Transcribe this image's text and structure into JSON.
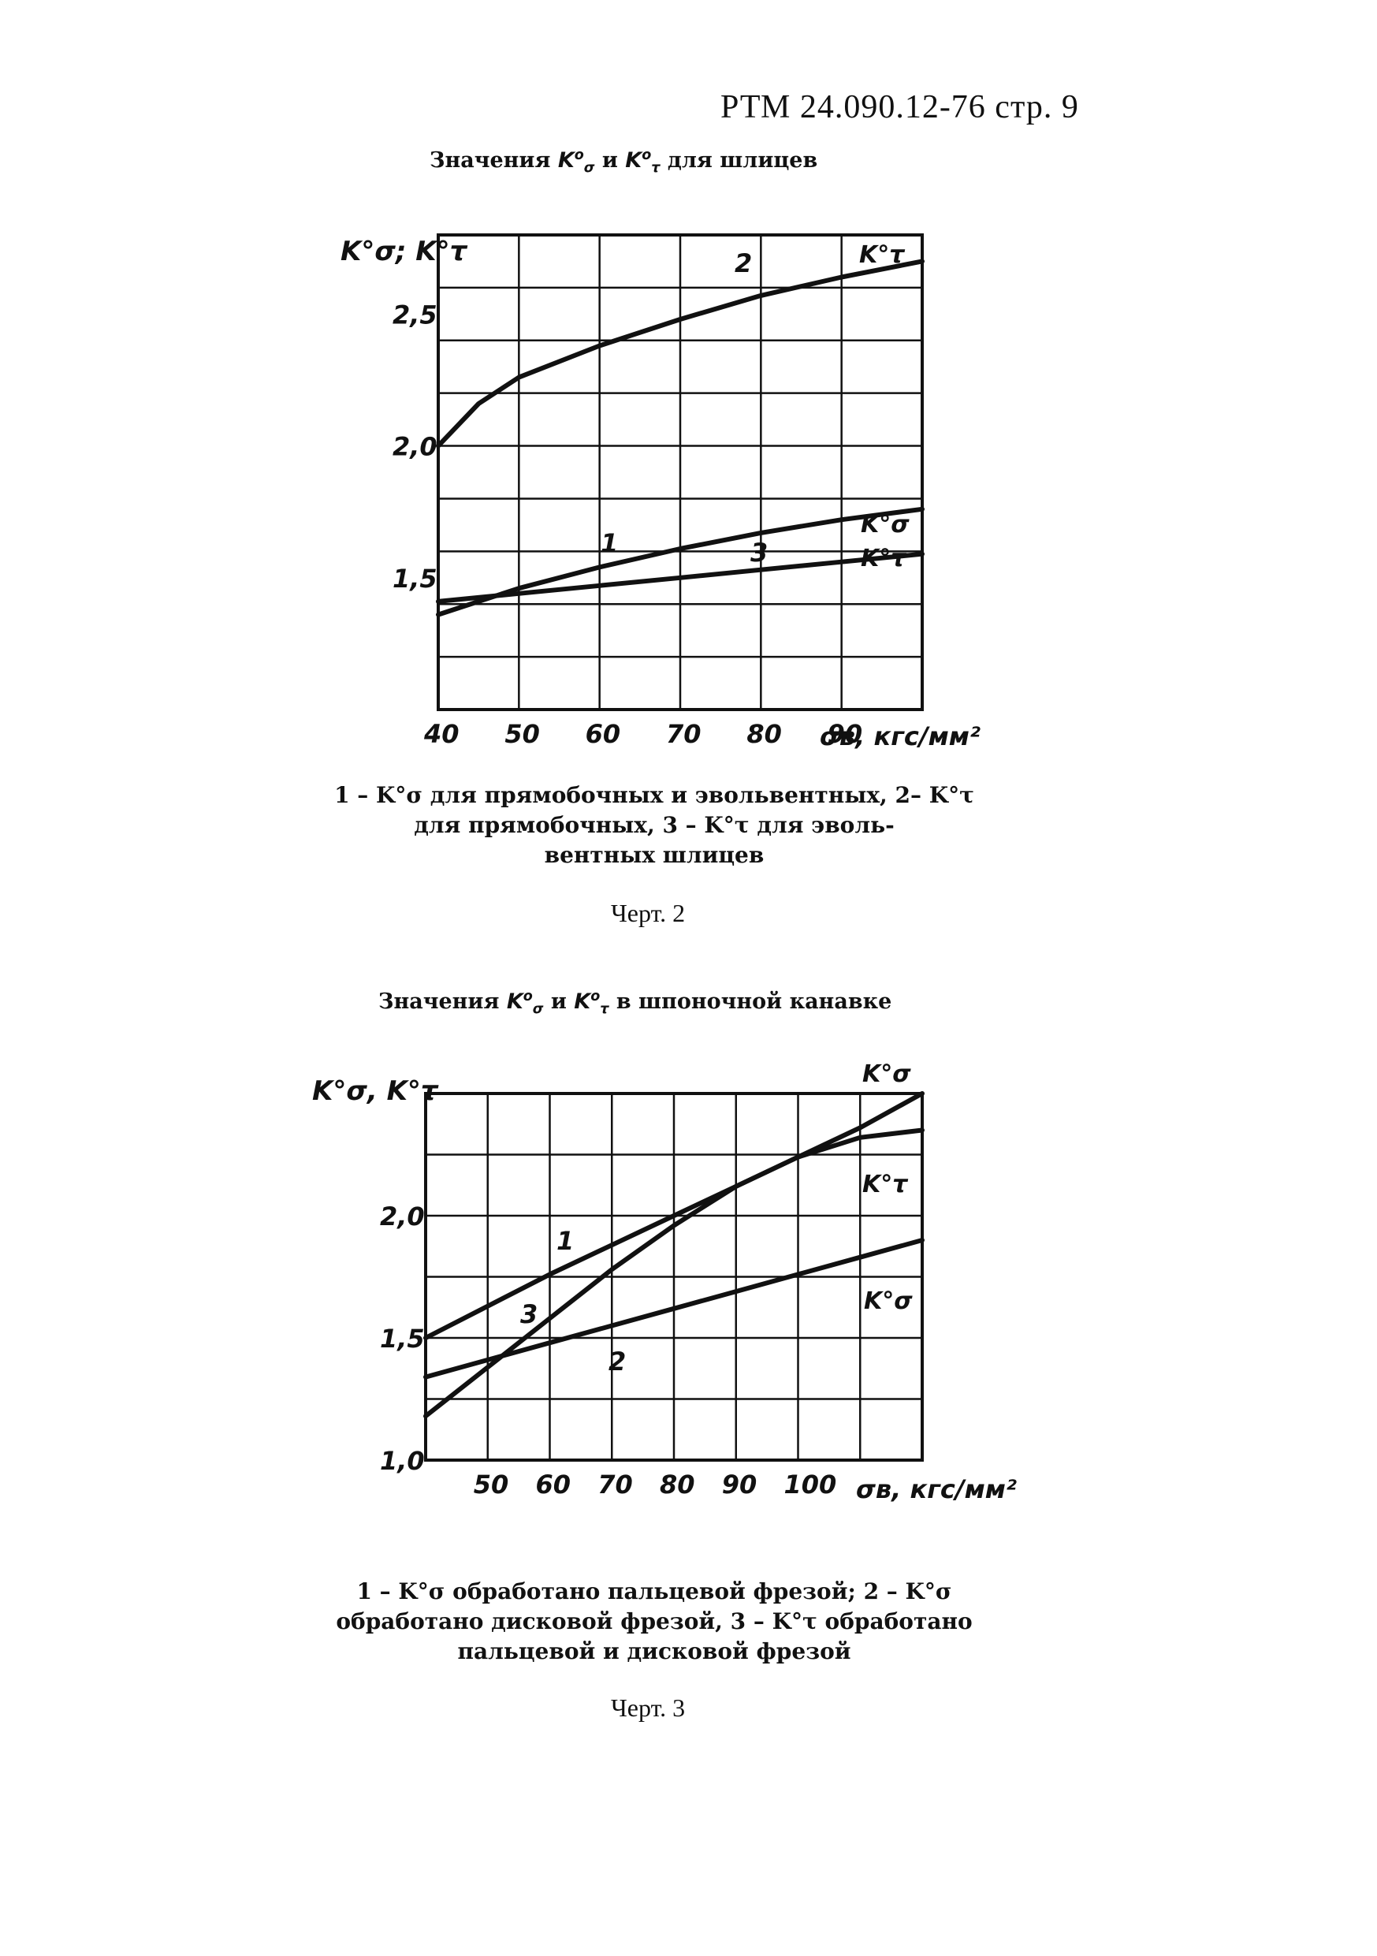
{
  "header": {
    "text": "РТМ 24.090.12-76 стр. 9"
  },
  "figure2": {
    "title": {
      "prefix": "Значения",
      "sym1": "K",
      "sym1_sub": "σ",
      "sym1_sup": "o",
      "mid": "и",
      "sym2": "K",
      "sym2_sub": "τ",
      "sym2_sup": "o",
      "suffix": "для шлицев"
    },
    "caption": {
      "line1": "1 – K°σ для прямобочных и эвольвентных, 2– K°τ",
      "line2": "для прямобочных, 3 – K°τ для эволь-",
      "line3": "вентных шлицев"
    },
    "figno": "Черт. 2",
    "y_axis_label": "K°σ; K°τ",
    "x_axis_label": "σв, кгс/мм²",
    "x_ticks": [
      "40",
      "50",
      "60",
      "70",
      "80",
      "90"
    ],
    "y_ticks": [
      "2,5",
      "2,0",
      "1,5"
    ],
    "curve_labels": [
      "1",
      "2",
      "3"
    ],
    "end_labels": [
      "K°τ",
      "K°σ",
      "K°τ"
    ]
  },
  "figure3": {
    "title": {
      "prefix": "Значения",
      "sym1": "K",
      "sym1_sub": "σ",
      "sym1_sup": "o",
      "mid": "и",
      "sym2": "K",
      "sym2_sub": "τ",
      "sym2_sup": "o",
      "suffix": "в шпоночной канавке"
    },
    "caption": {
      "line1": "1 – K°σ обработано пальцевой фрезой; 2 – K°σ",
      "line2": "обработано дисковой фрезой, 3 – K°τ обработано",
      "line3": "пальцевой и дисковой фрезой"
    },
    "figno": "Черт. 3",
    "y_axis_label": "K°σ, K°τ",
    "x_axis_label": "σв, кгс/мм²",
    "x_ticks": [
      "50",
      "60",
      "70",
      "80",
      "90",
      "100"
    ],
    "y_ticks": [
      "2,0",
      "1,5",
      "1,0"
    ],
    "curve_labels": [
      "1",
      "2",
      "3"
    ],
    "end_labels": [
      "K°σ",
      "K°τ",
      "K°σ"
    ]
  },
  "chart_data": [
    {
      "type": "line",
      "title": "Значения K°σ и K°τ для шлицев",
      "xlabel": "σв, кгс/мм²",
      "ylabel": "K°σ; K°τ",
      "xlim": [
        40,
        100
      ],
      "ylim": [
        1.0,
        2.8
      ],
      "grid": true,
      "series": [
        {
          "name": "1",
          "x": [
            40,
            45,
            50,
            60,
            70,
            80,
            90,
            100
          ],
          "y": [
            1.36,
            1.41,
            1.46,
            1.54,
            1.61,
            1.67,
            1.72,
            1.76
          ]
        },
        {
          "name": "2",
          "x": [
            40,
            45,
            50,
            60,
            70,
            80,
            90,
            100
          ],
          "y": [
            2.0,
            2.16,
            2.26,
            2.38,
            2.48,
            2.57,
            2.64,
            2.7
          ]
        },
        {
          "name": "3",
          "x": [
            40,
            50,
            60,
            70,
            80,
            90,
            100
          ],
          "y": [
            1.41,
            1.44,
            1.47,
            1.5,
            1.53,
            1.56,
            1.59
          ]
        }
      ]
    },
    {
      "type": "line",
      "title": "Значения K°σ и K°τ в шпоночной канавке",
      "xlabel": "σв, кгс/мм²",
      "ylabel": "K°σ, K°τ",
      "xlim": [
        40,
        120
      ],
      "ylim": [
        1.0,
        2.5
      ],
      "grid": true,
      "series": [
        {
          "name": "1",
          "x": [
            40,
            50,
            60,
            70,
            80,
            90,
            100,
            110,
            120
          ],
          "y": [
            1.5,
            1.63,
            1.76,
            1.88,
            2.0,
            2.12,
            2.24,
            2.36,
            2.5
          ]
        },
        {
          "name": "2",
          "x": [
            40,
            50,
            60,
            70,
            80,
            90,
            100,
            110,
            120
          ],
          "y": [
            1.34,
            1.41,
            1.48,
            1.55,
            1.62,
            1.69,
            1.76,
            1.83,
            1.9
          ]
        },
        {
          "name": "3",
          "x": [
            40,
            50,
            60,
            70,
            80,
            90,
            100,
            110,
            120
          ],
          "y": [
            1.18,
            1.38,
            1.58,
            1.78,
            1.96,
            2.12,
            2.24,
            2.32,
            2.35
          ]
        }
      ]
    }
  ]
}
